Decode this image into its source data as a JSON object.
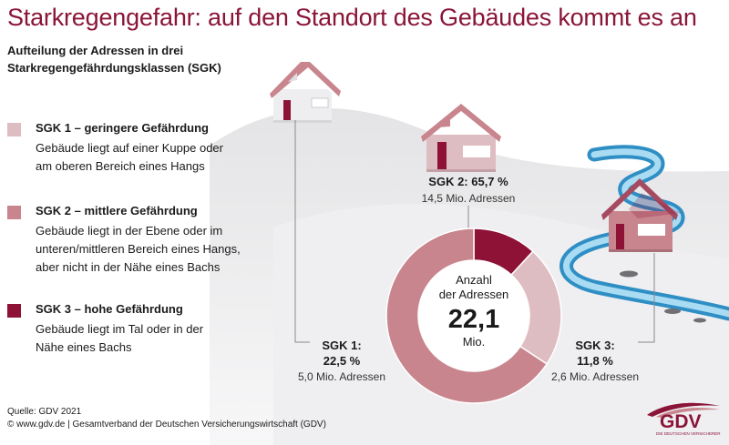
{
  "title": "Starkregengefahr: auf den Standort des Gebäudes kommt es an",
  "subtitle_line1": "Aufteilung der Adressen in drei",
  "subtitle_line2": "Starkregengefährdungsklassen (SGK)",
  "legend": [
    {
      "heading": "SGK 1 – geringere Gefährdung",
      "description": "Gebäude liegt auf einer Kuppe oder am oberen Bereich eines Hangs",
      "color": "#ddbdc1"
    },
    {
      "heading": "SGK 2 – mittlere Gefährdung",
      "description": "Gebäude liegt in der Ebene oder im unteren/mittleren Bereich eines Hangs, aber nicht in der Nähe eines Bachs",
      "color": "#c8858d"
    },
    {
      "heading": "SGK 3 – hohe Gefährdung",
      "description": "Gebäude liegt im Tal oder in der Nähe eines Bachs",
      "color": "#8e1236"
    }
  ],
  "segments": {
    "sgk1": {
      "name": "SGK 1:",
      "percent": "22,5 %",
      "count": "5,0 Mio. Adressen"
    },
    "sgk2": {
      "name_percent": "SGK 2: 65,7 %",
      "count": "14,5 Mio. Adressen"
    },
    "sgk3": {
      "name": "SGK 3:",
      "percent": "11,8 %",
      "count": "2,6 Mio. Adressen"
    }
  },
  "center": {
    "label1": "Anzahl",
    "label2": "der Adressen",
    "value": "22,1",
    "unit": "Mio."
  },
  "source": "Quelle: GDV 2021",
  "copyright": "© www.gdv.de | Gesamtverband der Deutschen Versicherungswirtschaft (GDV)",
  "logo": {
    "text": "GDV",
    "subtext": "DIE DEUTSCHEN VERSICHERER"
  },
  "chart_data": {
    "type": "pie",
    "variant": "donut",
    "title": "Aufteilung der Adressen in drei Starkregengefährdungsklassen (SGK)",
    "categories": [
      "SGK 1",
      "SGK 2",
      "SGK 3"
    ],
    "values": [
      22.5,
      65.7,
      11.8
    ],
    "counts_mio": [
      5.0,
      14.5,
      2.6
    ],
    "total_mio": 22.1,
    "unit": "%",
    "colors": [
      "#ddbdc1",
      "#c8858d",
      "#8e1236"
    ]
  }
}
